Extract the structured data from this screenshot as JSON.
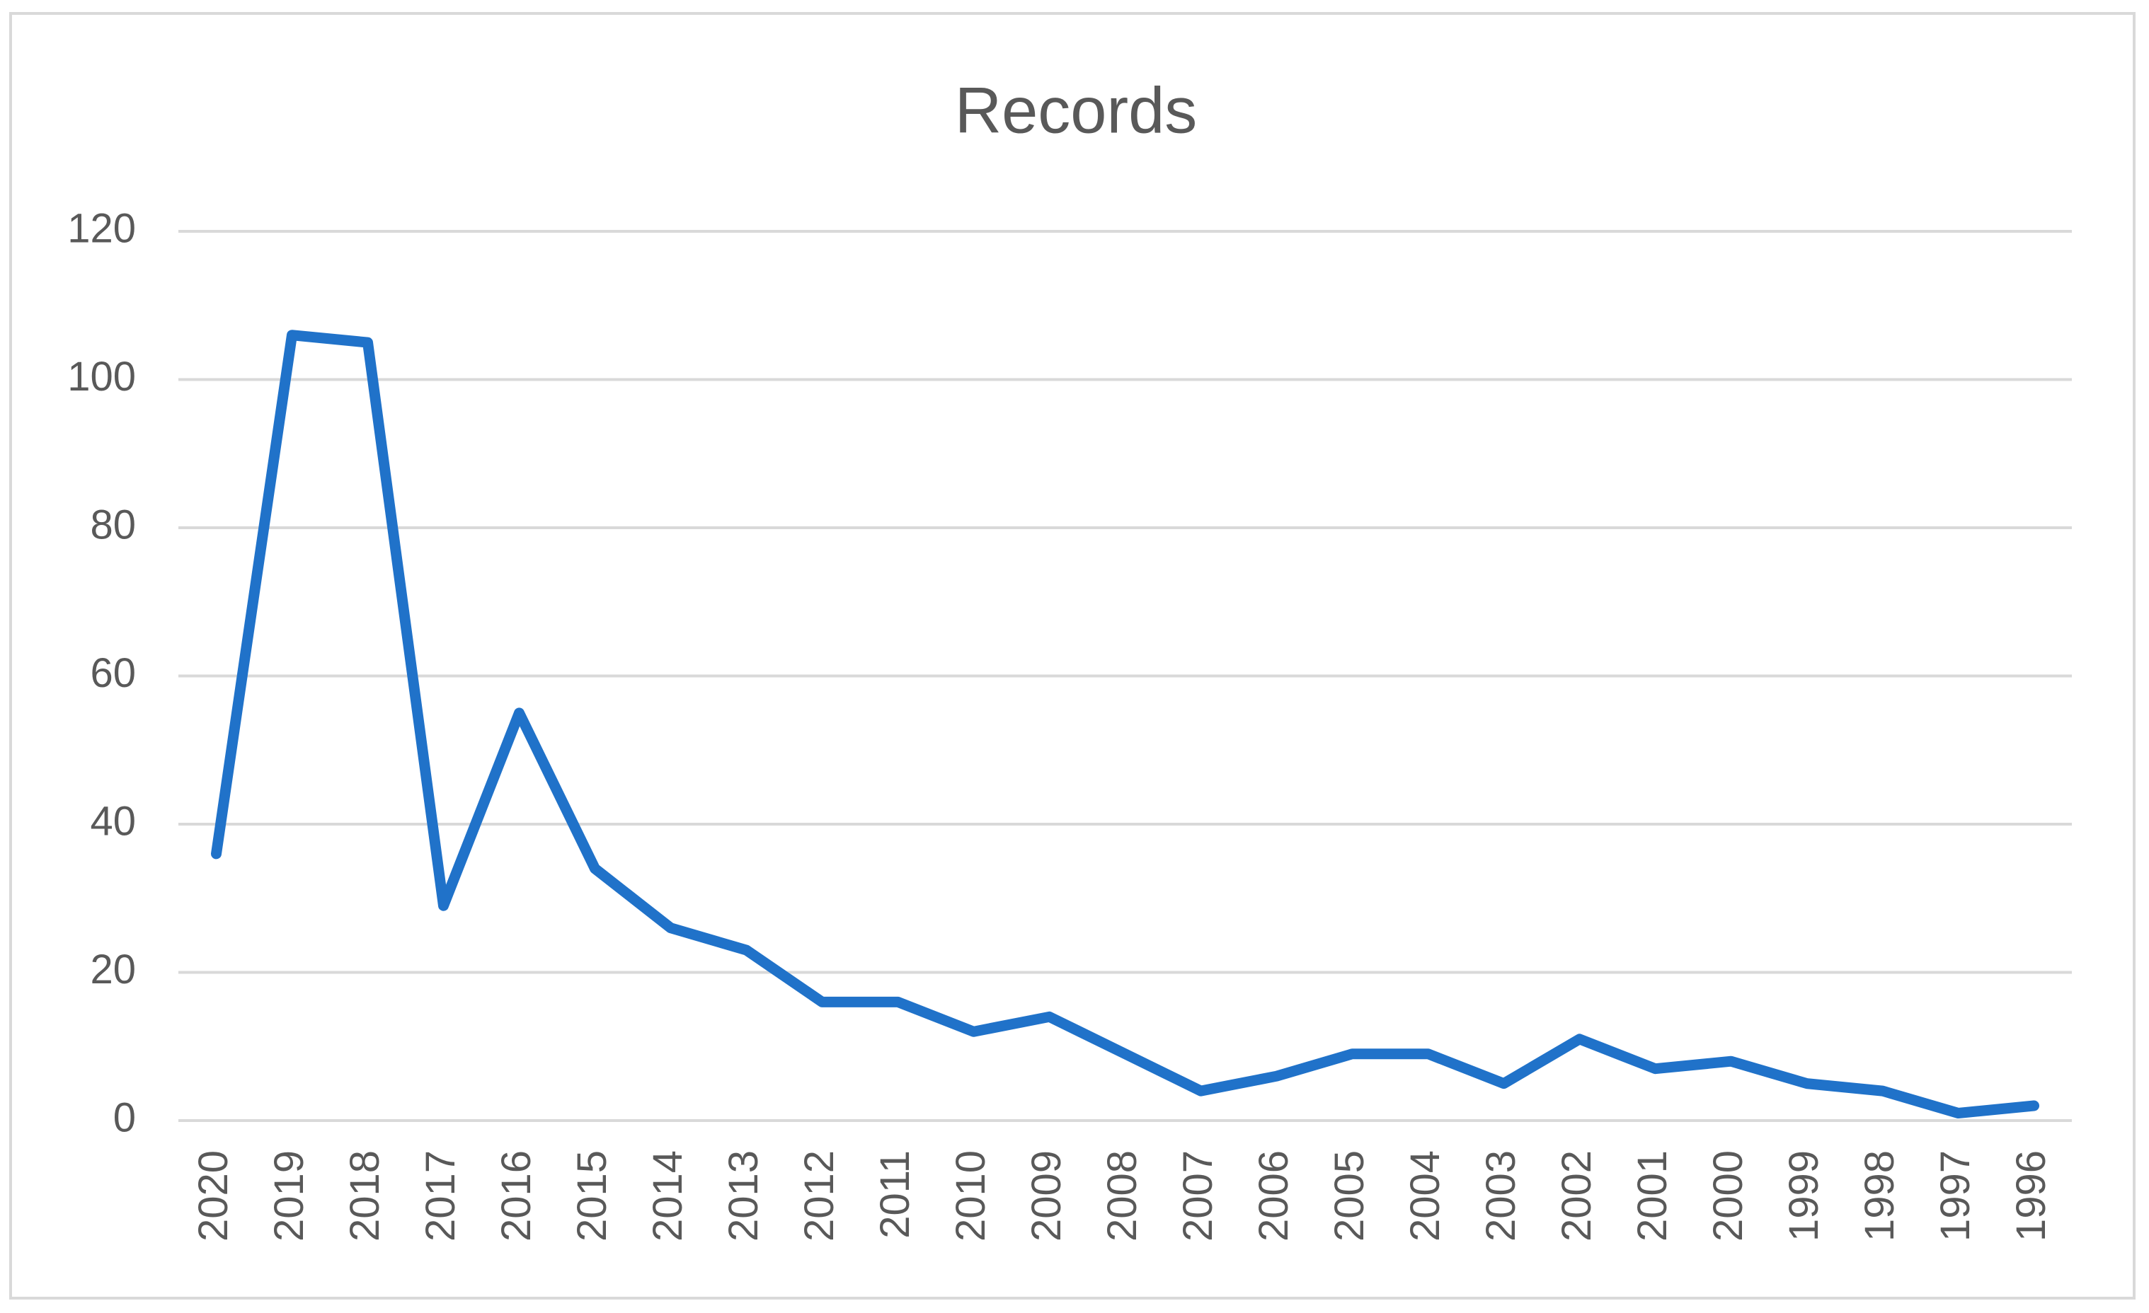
{
  "chart_data": {
    "type": "line",
    "title": "Records",
    "categories": [
      "2020",
      "2019",
      "2018",
      "2017",
      "2016",
      "2015",
      "2014",
      "2013",
      "2012",
      "2011",
      "2010",
      "2009",
      "2008",
      "2007",
      "2006",
      "2005",
      "2004",
      "2003",
      "2002",
      "2001",
      "2000",
      "1999",
      "1998",
      "1997",
      "1996"
    ],
    "values": [
      36,
      106,
      105,
      29,
      55,
      34,
      26,
      23,
      16,
      16,
      12,
      14,
      9,
      4,
      6,
      9,
      9,
      5,
      11,
      7,
      8,
      5,
      4,
      1,
      2
    ],
    "color": "#2072c9",
    "ylim": [
      0,
      120
    ],
    "yticks": [
      0,
      20,
      40,
      60,
      80,
      100,
      120
    ],
    "grid": true
  }
}
